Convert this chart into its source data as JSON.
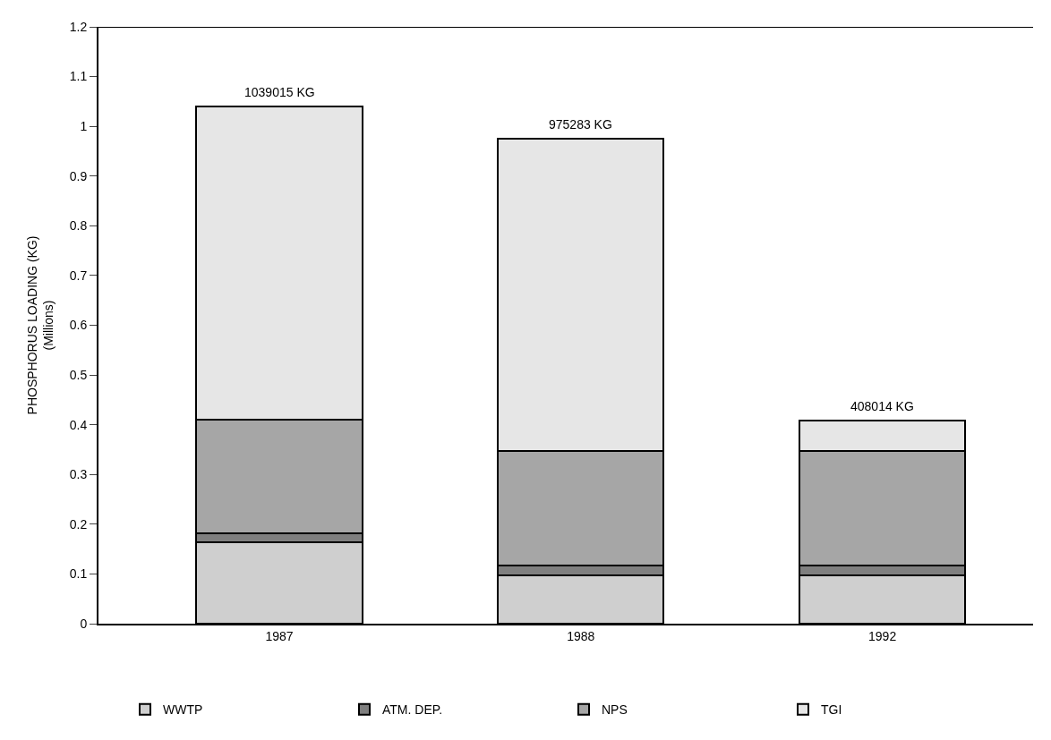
{
  "chart_data": {
    "type": "bar",
    "stacked": true,
    "ylabel": "PHOSPHORUS LOADING (KG)\n(Millions)",
    "categories": [
      "1987",
      "1988",
      "1992"
    ],
    "series": [
      {
        "name": "WWTP",
        "color": "#cfcfcf",
        "values": [
          0.163,
          0.097,
          0.097
        ]
      },
      {
        "name": "ATM. DEP.",
        "color": "#7f7f7f",
        "values": [
          0.019,
          0.02,
          0.02
        ]
      },
      {
        "name": "NPS",
        "color": "#a6a6a6",
        "values": [
          0.228,
          0.231,
          0.231
        ]
      },
      {
        "name": "TGI",
        "color": "#e6e6e6",
        "values": [
          0.629,
          0.627,
          0.06
        ]
      }
    ],
    "annotations": [
      {
        "text": "1039015 KG",
        "x": "1987",
        "y": 1.039
      },
      {
        "text": "975283 KG",
        "x": "1988",
        "y": 0.975
      },
      {
        "text": "408014 KG",
        "x": "1992",
        "y": 0.408
      }
    ],
    "ylim": [
      0,
      1.2
    ],
    "yticks": [
      0,
      0.1,
      0.2,
      0.3,
      0.4,
      0.5,
      0.6,
      0.7,
      0.8,
      0.9,
      1,
      1.1,
      1.2
    ],
    "grid": false,
    "legend": "bottom"
  }
}
